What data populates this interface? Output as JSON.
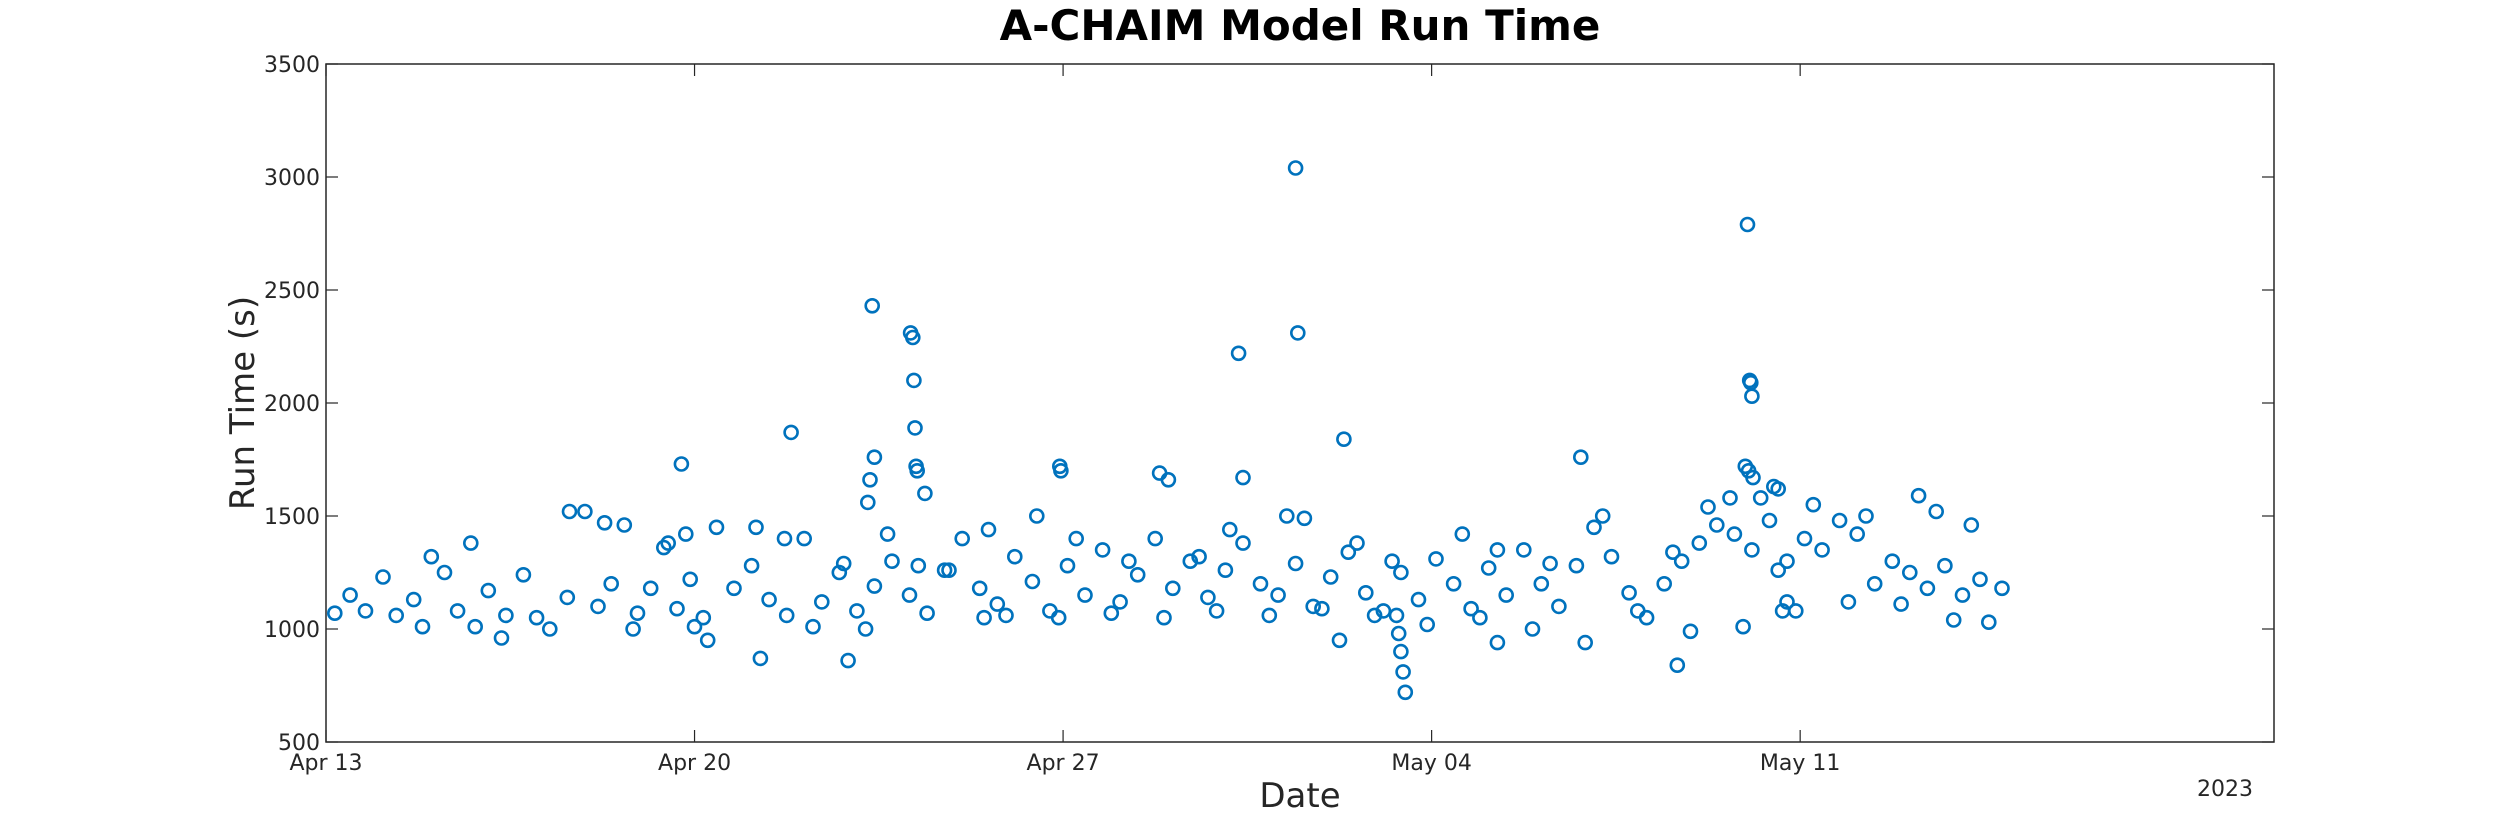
{
  "chart_data": {
    "type": "scatter",
    "title": "A-CHAIM Model Run Time",
    "xlabel": "Date",
    "ylabel": "Run Time (s)",
    "ylim": [
      500,
      3500
    ],
    "xlim": [
      "2023-04-13",
      "2023-05-20"
    ],
    "year_label": "2023",
    "y_ticks": [
      500,
      1000,
      1500,
      2000,
      2500,
      3000,
      3500
    ],
    "x_ticks": [
      {
        "date": "2023-04-13",
        "label": "Apr 13"
      },
      {
        "date": "2023-04-20",
        "label": "Apr 20"
      },
      {
        "date": "2023-04-27",
        "label": "Apr 27"
      },
      {
        "date": "2023-05-04",
        "label": "May 04"
      },
      {
        "date": "2023-05-11",
        "label": "May 11"
      }
    ],
    "grid": false,
    "marker": "open-circle",
    "colors": {
      "series": "#0072BD",
      "axes": "#262626"
    },
    "series": [
      {
        "values": [
          [
            "2023-04-13 11:00",
            1150
          ],
          [
            "2023-04-13 18:00",
            1080
          ],
          [
            "2023-04-14 02:00",
            1230
          ],
          [
            "2023-04-14 08:00",
            1060
          ],
          [
            "2023-04-14 16:00",
            1130
          ],
          [
            "2023-04-15 00:00",
            1320
          ],
          [
            "2023-04-15 06:00",
            1250
          ],
          [
            "2023-04-15 12:00",
            1080
          ],
          [
            "2023-04-15 18:00",
            1380
          ],
          [
            "2023-04-16 02:00",
            1170
          ],
          [
            "2023-04-16 10:00",
            1060
          ],
          [
            "2023-04-16 18:00",
            1240
          ],
          [
            "2023-04-17 00:00",
            1050
          ],
          [
            "2023-04-17 06:00",
            1000
          ],
          [
            "2023-04-17 14:00",
            1140
          ],
          [
            "2023-04-17 22:00",
            1520
          ],
          [
            "2023-04-18 04:00",
            1100
          ],
          [
            "2023-04-18 10:00",
            1200
          ],
          [
            "2023-04-18 16:00",
            1460
          ],
          [
            "2023-04-18 22:00",
            1070
          ],
          [
            "2023-04-19 04:00",
            1180
          ],
          [
            "2023-04-19 10:00",
            1360
          ],
          [
            "2023-04-19 16:00",
            1090
          ],
          [
            "2023-04-19 22:00",
            1220
          ],
          [
            "2023-04-20 04:00",
            1050
          ],
          [
            "2023-04-20 10:00",
            1450
          ],
          [
            "2023-04-20 18:00",
            1180
          ],
          [
            "2023-04-21 02:00",
            1280
          ],
          [
            "2023-04-21 10:00",
            1130
          ],
          [
            "2023-04-21 18:00",
            1060
          ],
          [
            "2023-04-22 02:00",
            1400
          ],
          [
            "2023-04-22 10:00",
            1120
          ],
          [
            "2023-04-22 18:00",
            1250
          ],
          [
            "2023-04-23 02:00",
            1080
          ],
          [
            "2023-04-23 10:00",
            1190
          ],
          [
            "2023-04-23 18:00",
            1300
          ],
          [
            "2023-04-24 02:00",
            1150
          ],
          [
            "2023-04-24 10:00",
            1070
          ],
          [
            "2023-04-24 18:00",
            1260
          ],
          [
            "2023-04-25 02:00",
            1400
          ],
          [
            "2023-04-25 10:00",
            1180
          ],
          [
            "2023-04-25 18:00",
            1110
          ],
          [
            "2023-04-26 02:00",
            1320
          ],
          [
            "2023-04-26 10:00",
            1210
          ],
          [
            "2023-04-26 18:00",
            1080
          ],
          [
            "2023-04-27 02:00",
            1280
          ],
          [
            "2023-04-27 10:00",
            1150
          ],
          [
            "2023-04-27 18:00",
            1350
          ],
          [
            "2023-04-28 02:00",
            1120
          ],
          [
            "2023-04-28 10:00",
            1240
          ],
          [
            "2023-04-28 18:00",
            1400
          ],
          [
            "2023-04-29 02:00",
            1180
          ],
          [
            "2023-04-29 10:00",
            1300
          ],
          [
            "2023-04-29 18:00",
            1140
          ],
          [
            "2023-04-30 02:00",
            1260
          ],
          [
            "2023-04-30 10:00",
            1380
          ],
          [
            "2023-04-30 18:00",
            1200
          ],
          [
            "2023-05-01 02:00",
            1150
          ],
          [
            "2023-05-01 10:00",
            1290
          ],
          [
            "2023-05-01 18:00",
            1100
          ],
          [
            "2023-05-02 02:00",
            1230
          ],
          [
            "2023-05-02 10:00",
            1340
          ],
          [
            "2023-05-02 18:00",
            1160
          ],
          [
            "2023-05-03 02:00",
            1080
          ],
          [
            "2023-05-03 10:00",
            1250
          ],
          [
            "2023-05-03 18:00",
            1130
          ],
          [
            "2023-05-04 02:00",
            1310
          ],
          [
            "2023-05-04 10:00",
            1200
          ],
          [
            "2023-05-04 18:00",
            1090
          ],
          [
            "2023-05-05 02:00",
            1270
          ],
          [
            "2023-05-05 10:00",
            1150
          ],
          [
            "2023-05-05 18:00",
            1350
          ],
          [
            "2023-05-06 02:00",
            1200
          ],
          [
            "2023-05-06 10:00",
            1100
          ],
          [
            "2023-05-06 18:00",
            1280
          ],
          [
            "2023-05-07 02:00",
            1450
          ],
          [
            "2023-05-07 10:00",
            1320
          ],
          [
            "2023-05-07 18:00",
            1160
          ],
          [
            "2023-05-08 02:00",
            1050
          ],
          [
            "2023-05-08 10:00",
            1200
          ],
          [
            "2023-05-08 18:00",
            1300
          ],
          [
            "2023-05-09 02:00",
            1380
          ],
          [
            "2023-05-09 10:00",
            1460
          ],
          [
            "2023-05-09 18:00",
            1420
          ],
          [
            "2023-05-10 02:00",
            1350
          ],
          [
            "2023-05-10 10:00",
            1480
          ],
          [
            "2023-05-10 18:00",
            1300
          ],
          [
            "2023-05-11 02:00",
            1400
          ],
          [
            "2023-05-11 10:00",
            1350
          ],
          [
            "2023-05-11 18:00",
            1480
          ],
          [
            "2023-05-12 02:00",
            1420
          ],
          [
            "2023-05-12 10:00",
            1200
          ],
          [
            "2023-05-12 18:00",
            1300
          ],
          [
            "2023-05-13 02:00",
            1250
          ],
          [
            "2023-05-13 10:00",
            1180
          ],
          [
            "2023-05-13 18:00",
            1280
          ],
          [
            "2023-05-14 02:00",
            1150
          ],
          [
            "2023-05-14 10:00",
            1220
          ],
          [
            "2023-05-14 20:00",
            1180
          ],
          [
            "2023-04-17 15:00",
            1520
          ],
          [
            "2023-04-18 07:00",
            1470
          ],
          [
            "2023-04-19 12:00",
            1380
          ],
          [
            "2023-04-21 04:00",
            1450
          ],
          [
            "2023-04-21 17:00",
            1400
          ],
          [
            "2023-04-22 20:00",
            1290
          ],
          [
            "2023-04-23 16:00",
            1420
          ],
          [
            "2023-04-24 06:00",
            1280
          ],
          [
            "2023-04-24 20:00",
            1260
          ],
          [
            "2023-04-25 14:00",
            1440
          ],
          [
            "2023-04-26 12:00",
            1500
          ],
          [
            "2023-04-27 06:00",
            1400
          ],
          [
            "2023-04-28 06:00",
            1300
          ],
          [
            "2023-04-29 14:00",
            1320
          ],
          [
            "2023-04-30 04:00",
            1440
          ],
          [
            "2023-05-01 06:00",
            1500
          ],
          [
            "2023-05-02 14:00",
            1380
          ],
          [
            "2023-05-03 06:00",
            1300
          ],
          [
            "2023-05-04 14:00",
            1420
          ],
          [
            "2023-05-05 06:00",
            1350
          ],
          [
            "2023-05-06 06:00",
            1290
          ],
          [
            "2023-05-07 06:00",
            1500
          ],
          [
            "2023-05-08 14:00",
            1340
          ],
          [
            "2023-05-09 06:00",
            1540
          ],
          [
            "2023-05-10 06:00",
            1580
          ],
          [
            "2023-05-10 14:00",
            1620
          ],
          [
            "2023-05-11 06:00",
            1550
          ],
          [
            "2023-05-12 06:00",
            1500
          ],
          [
            "2023-05-13 06:00",
            1590
          ],
          [
            "2023-05-13 14:00",
            1520
          ],
          [
            "2023-05-14 06:00",
            1460
          ],
          [
            "2023-04-13 04:00",
            1070
          ],
          [
            "2023-04-14 20:00",
            1010
          ],
          [
            "2023-04-15 20:00",
            1010
          ],
          [
            "2023-04-16 08:00",
            960
          ],
          [
            "2023-04-18 20:00",
            1000
          ],
          [
            "2023-04-20 00:00",
            1010
          ],
          [
            "2023-04-20 06:00",
            950
          ],
          [
            "2023-04-21 06:00",
            870
          ],
          [
            "2023-04-22 06:00",
            1010
          ],
          [
            "2023-04-23 06:00",
            1000
          ],
          [
            "2023-04-25 22:00",
            1060
          ],
          [
            "2023-04-26 22:00",
            1050
          ],
          [
            "2023-04-27 22:00",
            1070
          ],
          [
            "2023-04-28 22:00",
            1050
          ],
          [
            "2023-04-29 22:00",
            1080
          ],
          [
            "2023-04-30 22:00",
            1060
          ],
          [
            "2023-05-01 22:00",
            1090
          ],
          [
            "2023-05-02 22:00",
            1060
          ],
          [
            "2023-05-03 22:00",
            1020
          ],
          [
            "2023-05-04 22:00",
            1050
          ],
          [
            "2023-05-05 22:00",
            1000
          ],
          [
            "2023-05-06 22:00",
            940
          ],
          [
            "2023-05-07 22:00",
            1080
          ],
          [
            "2023-05-08 22:00",
            990
          ],
          [
            "2023-05-09 22:00",
            1010
          ],
          [
            "2023-05-10 22:00",
            1080
          ],
          [
            "2023-05-11 22:00",
            1120
          ],
          [
            "2023-05-12 22:00",
            1110
          ],
          [
            "2023-05-13 22:00",
            1040
          ],
          [
            "2023-05-14 14:00",
            1030
          ],
          [
            "2023-04-19 18:00",
            1730
          ],
          [
            "2023-04-19 20:00",
            1420
          ],
          [
            "2023-04-21 20:00",
            1870
          ],
          [
            "2023-04-22 22:00",
            860
          ],
          [
            "2023-04-23 09:00",
            2430
          ],
          [
            "2023-04-23 10:00",
            1760
          ],
          [
            "2023-04-23 08:00",
            1660
          ],
          [
            "2023-04-23 07:00",
            1560
          ],
          [
            "2023-04-24 02:30",
            2310
          ],
          [
            "2023-04-24 03:30",
            2290
          ],
          [
            "2023-04-24 04:00",
            2100
          ],
          [
            "2023-04-24 04:30",
            1890
          ],
          [
            "2023-04-24 05:00",
            1720
          ],
          [
            "2023-04-24 05:30",
            1700
          ],
          [
            "2023-04-24 09:00",
            1600
          ],
          [
            "2023-04-25 12:00",
            1050
          ],
          [
            "2023-04-26 22:30",
            1720
          ],
          [
            "2023-04-26 23:00",
            1700
          ],
          [
            "2023-04-28 20:00",
            1690
          ],
          [
            "2023-04-29 00:00",
            1660
          ],
          [
            "2023-04-30 08:00",
            2220
          ],
          [
            "2023-04-30 10:00",
            1670
          ],
          [
            "2023-05-01 10:00",
            3040
          ],
          [
            "2023-05-01 11:00",
            2310
          ],
          [
            "2023-05-01 14:00",
            1490
          ],
          [
            "2023-05-02 08:00",
            1840
          ],
          [
            "2023-05-02 06:00",
            950
          ],
          [
            "2023-05-03 12:00",
            720
          ],
          [
            "2023-05-03 11:00",
            810
          ],
          [
            "2023-05-03 10:00",
            900
          ],
          [
            "2023-05-03 09:00",
            980
          ],
          [
            "2023-05-03 08:00",
            1060
          ],
          [
            "2023-05-05 06:00",
            940
          ],
          [
            "2023-05-06 20:00",
            1760
          ],
          [
            "2023-05-08 16:00",
            840
          ],
          [
            "2023-05-09 16:00",
            1580
          ],
          [
            "2023-05-10 00:00",
            2790
          ],
          [
            "2023-05-10 01:00",
            2100
          ],
          [
            "2023-05-10 01:30",
            2090
          ],
          [
            "2023-05-10 02:00",
            2030
          ],
          [
            "2023-05-09 23:00",
            1720
          ],
          [
            "2023-05-10 00:30",
            1700
          ],
          [
            "2023-05-10 02:30",
            1670
          ],
          [
            "2023-05-10 12:00",
            1630
          ],
          [
            "2023-05-10 14:00",
            1260
          ],
          [
            "2023-05-10 16:00",
            1080
          ],
          [
            "2023-05-10 18:00",
            1120
          ]
        ]
      }
    ]
  }
}
